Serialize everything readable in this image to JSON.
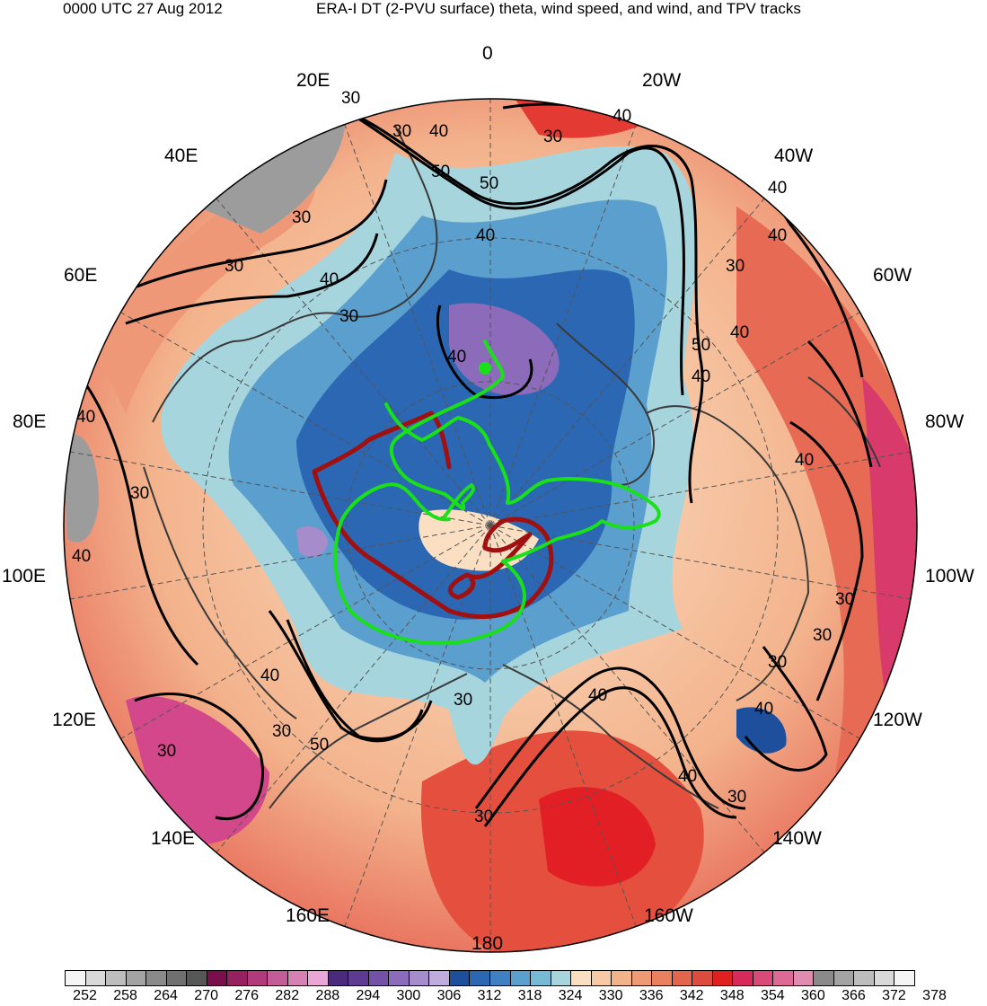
{
  "header": {
    "left": "0000 UTC 27 Aug 2012",
    "right": "ERA-I DT (2-PVU surface) theta, wind speed, and wind, and TPV tracks"
  },
  "lon_labels": [
    "0",
    "20W",
    "40W",
    "60W",
    "80W",
    "100W",
    "120W",
    "140W",
    "160W",
    "180",
    "160E",
    "140E",
    "120E",
    "100E",
    "80E",
    "60E",
    "40E",
    "20E"
  ],
  "contour_labels": {
    "a": "30",
    "b": "40",
    "c": "50",
    "d": "40",
    "e": "30",
    "f": "40",
    "g": "40",
    "h": "30",
    "i": "40",
    "j": "50",
    "k": "40",
    "l": "30",
    "m": "40",
    "n": "30",
    "o": "30",
    "p": "30",
    "q": "40",
    "r": "40",
    "s": "30",
    "t": "40",
    "u": "30",
    "v": "30",
    "w": "40",
    "x": "30",
    "y": "50",
    "z": "40",
    "aa": "30",
    "ab": "40",
    "ac": "30",
    "ad": "40",
    "ae": "30",
    "af": "40",
    "ag": "30",
    "ah": "40",
    "ai": "50",
    "aj": "30"
  },
  "colorbar": {
    "ticks": [
      "252",
      "258",
      "264",
      "270",
      "276",
      "282",
      "288",
      "294",
      "300",
      "306",
      "312",
      "318",
      "324",
      "330",
      "336",
      "342",
      "348",
      "354",
      "360",
      "366",
      "372",
      "378"
    ],
    "colors": [
      "#f5f5f5",
      "#d9d9d9",
      "#bdbdbd",
      "#a3a3a3",
      "#8a8a8a",
      "#707070",
      "#575757",
      "#7a0f4b",
      "#962060",
      "#b03a7c",
      "#c45c98",
      "#d680b4",
      "#eaa6d6",
      "#4a2a7c",
      "#5e3a92",
      "#7450a6",
      "#8c6cba",
      "#a68ccb",
      "#c0acdc",
      "#1e4f9c",
      "#2b67b2",
      "#3f80c2",
      "#5a9fcd",
      "#78bad6",
      "#a6d5de",
      "#fbdfc2",
      "#f7c9a4",
      "#f2b28a",
      "#ee9a74",
      "#e9815e",
      "#e3654c",
      "#dd4a3e",
      "#e02020",
      "#d82a5a",
      "#d94a78",
      "#dc6a94",
      "#e08cb0",
      "#8a8a8a",
      "#a3a3a3",
      "#bdbdbd",
      "#d9d9d9",
      "#f5f5f5"
    ]
  }
}
